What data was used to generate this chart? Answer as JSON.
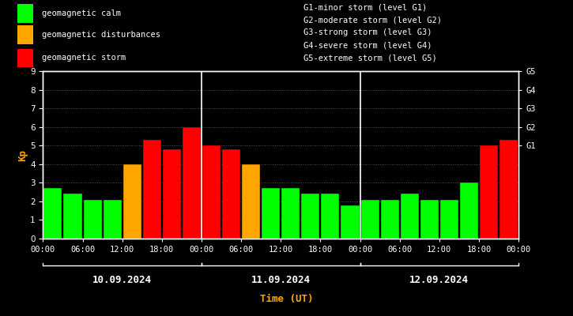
{
  "background_color": "#000000",
  "plot_bg_color": "#000000",
  "text_color": "#ffffff",
  "ylabel_color": "#ffa500",
  "xlabel_color": "#ffa500",
  "grid_color": "#ffffff",
  "bar_edge_color": "#000000",
  "days": [
    "10.09.2024",
    "11.09.2024",
    "12.09.2024"
  ],
  "kp_values": [
    [
      2.7,
      2.4,
      2.1,
      2.1,
      4.0,
      5.3,
      4.8,
      6.0
    ],
    [
      5.0,
      4.8,
      4.0,
      2.7,
      2.7,
      2.4,
      2.4,
      1.8
    ],
    [
      2.1,
      2.1,
      2.4,
      2.1,
      2.1,
      3.0,
      5.0,
      5.3
    ]
  ],
  "bar_colors": [
    [
      "#00ff00",
      "#00ff00",
      "#00ff00",
      "#00ff00",
      "#ffa500",
      "#ff0000",
      "#ff0000",
      "#ff0000"
    ],
    [
      "#ff0000",
      "#ff0000",
      "#ffa500",
      "#00ff00",
      "#00ff00",
      "#00ff00",
      "#00ff00",
      "#00ff00"
    ],
    [
      "#00ff00",
      "#00ff00",
      "#00ff00",
      "#00ff00",
      "#00ff00",
      "#00ff00",
      "#ff0000",
      "#ff0000"
    ]
  ],
  "tick_labels_per_day": [
    "00:00",
    "06:00",
    "12:00",
    "18:00"
  ],
  "last_tick": "00:00",
  "ylim": [
    0,
    9
  ],
  "yticks": [
    0,
    1,
    2,
    3,
    4,
    5,
    6,
    7,
    8,
    9
  ],
  "right_axis_labels": [
    "G1",
    "G2",
    "G3",
    "G4",
    "G5"
  ],
  "right_axis_values": [
    5,
    6,
    7,
    8,
    9
  ],
  "legend_items": [
    {
      "label": "geomagnetic calm",
      "color": "#00ff00"
    },
    {
      "label": "geomagnetic disturbances",
      "color": "#ffa500"
    },
    {
      "label": "geomagnetic storm",
      "color": "#ff0000"
    }
  ],
  "storm_legend": [
    "G1-minor storm (level G1)",
    "G2-moderate storm (level G2)",
    "G3-strong storm (level G3)",
    "G4-severe storm (level G4)",
    "G5-extreme storm (level G5)"
  ],
  "ylabel": "Kp",
  "xlabel": "Time (UT)",
  "tick_fontsize": 7.5,
  "legend_fontsize": 7.5
}
